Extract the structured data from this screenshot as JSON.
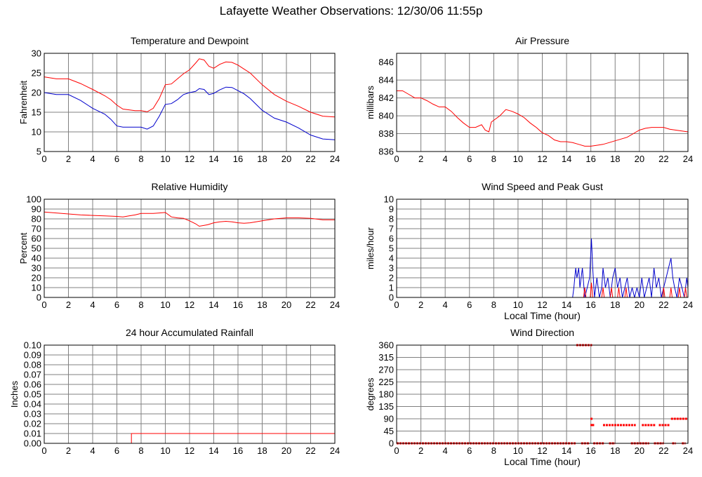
{
  "page": {
    "title": "Lafayette Weather Observations: 12/30/06 11:55p"
  },
  "colors": {
    "red_series": "#ff0000",
    "blue_series": "#0000cc",
    "grid": "#808080",
    "frame": "#000000"
  },
  "chart_data": [
    {
      "id": "temp",
      "type": "line",
      "title": "Temperature and Dewpoint",
      "xlabel": "",
      "ylabel": "Fahrenheit",
      "xlim": [
        0,
        24
      ],
      "ylim": [
        5,
        30
      ],
      "xticks": [
        0,
        2,
        4,
        6,
        8,
        10,
        12,
        14,
        16,
        18,
        20,
        22,
        24
      ],
      "yticks": [
        5,
        10,
        15,
        20,
        25,
        30
      ],
      "grid": true,
      "series": [
        {
          "color": "#ff0000",
          "x": [
            0,
            1,
            2,
            3,
            4,
            5,
            5.5,
            6,
            6.5,
            7,
            7.5,
            8,
            8.5,
            9,
            9.5,
            10,
            10.5,
            11,
            11.5,
            12,
            12.5,
            12.8,
            13.2,
            13.6,
            14,
            14.5,
            15,
            15.5,
            16,
            16.5,
            17,
            18,
            19,
            20,
            21,
            22,
            23,
            24
          ],
          "y": [
            24,
            23.5,
            23.5,
            22.3,
            20.8,
            19.2,
            18.2,
            16.8,
            15.8,
            15.6,
            15.4,
            15.4,
            15.1,
            16,
            18.5,
            22,
            22.2,
            23.5,
            24.8,
            25.8,
            27.5,
            28.6,
            28.3,
            26.7,
            26.2,
            27.2,
            27.8,
            27.7,
            27,
            26,
            25,
            22,
            19.5,
            17.8,
            16.5,
            15,
            14,
            13.8
          ]
        },
        {
          "color": "#0000cc",
          "x": [
            0,
            1,
            2,
            3,
            4,
            5,
            5.5,
            6,
            6.5,
            7,
            7.5,
            8,
            8.5,
            9,
            9.5,
            10,
            10.5,
            11,
            11.5,
            12,
            12.5,
            12.8,
            13.2,
            13.6,
            14,
            14.5,
            15,
            15.5,
            16,
            16.5,
            17,
            18,
            19,
            20,
            21,
            22,
            23,
            24
          ],
          "y": [
            20,
            19.5,
            19.5,
            18,
            16,
            14.5,
            13.2,
            11.5,
            11.2,
            11.2,
            11.2,
            11.2,
            10.7,
            11.5,
            14,
            17,
            17.2,
            18.2,
            19.5,
            20,
            20.3,
            21,
            20.8,
            19.5,
            19.8,
            20.7,
            21.4,
            21.3,
            20.5,
            19.7,
            18.5,
            15.5,
            13.5,
            12.5,
            11,
            9.2,
            8.2,
            8
          ]
        }
      ]
    },
    {
      "id": "pressure",
      "type": "line",
      "title": "Air Pressure",
      "xlabel": "",
      "ylabel": "millibars",
      "xlim": [
        0,
        24
      ],
      "ylim": [
        836,
        847
      ],
      "xticks": [
        0,
        2,
        4,
        6,
        8,
        10,
        12,
        14,
        16,
        18,
        20,
        22,
        24
      ],
      "yticks": [
        836,
        838,
        840,
        842,
        844,
        846
      ],
      "grid": true,
      "series": [
        {
          "color": "#ff0000",
          "x": [
            0,
            0.5,
            1,
            1.5,
            2,
            2.5,
            3,
            3.5,
            4,
            4.5,
            5,
            5.5,
            6,
            6.5,
            7,
            7.3,
            7.6,
            7.8,
            8,
            8.5,
            9,
            9.5,
            10,
            10.5,
            11,
            11.5,
            12,
            12.5,
            13,
            13.5,
            14,
            14.5,
            15,
            15.5,
            16,
            16.5,
            17,
            17.5,
            18,
            18.5,
            19,
            19.5,
            20,
            20.5,
            21,
            21.5,
            22,
            22.5,
            23,
            23.5,
            24
          ],
          "y": [
            842.8,
            842.8,
            842.4,
            842,
            842,
            841.7,
            841.3,
            841,
            841,
            840.5,
            839.8,
            839.2,
            838.7,
            838.7,
            839,
            838.4,
            838.2,
            839.3,
            839.5,
            840,
            840.7,
            840.5,
            840.2,
            839.8,
            839.2,
            838.7,
            838.1,
            837.8,
            837.3,
            837.1,
            837.1,
            837,
            836.8,
            836.6,
            836.6,
            836.7,
            836.8,
            837,
            837.2,
            837.4,
            837.6,
            838,
            838.4,
            838.6,
            838.7,
            838.7,
            838.7,
            838.5,
            838.4,
            838.3,
            838.2
          ]
        }
      ]
    },
    {
      "id": "humidity",
      "type": "line",
      "title": "Relative Humidity",
      "xlabel": "",
      "ylabel": "Percent",
      "xlim": [
        0,
        24
      ],
      "ylim": [
        0,
        100
      ],
      "xticks": [
        0,
        2,
        4,
        6,
        8,
        10,
        12,
        14,
        16,
        18,
        20,
        22,
        24
      ],
      "yticks": [
        0,
        10,
        20,
        30,
        40,
        50,
        60,
        70,
        80,
        90,
        100
      ],
      "grid": true,
      "series": [
        {
          "color": "#ff0000",
          "x": [
            0,
            1,
            2,
            3,
            4,
            5,
            6,
            6.5,
            7,
            7.5,
            8,
            8.5,
            9,
            9.5,
            10,
            10.5,
            11,
            11.5,
            12,
            12.5,
            12.8,
            13.5,
            14,
            14.5,
            15,
            15.5,
            16,
            16.5,
            17,
            18,
            19,
            20,
            21,
            22,
            23,
            24
          ],
          "y": [
            87,
            86,
            85,
            84,
            83.5,
            83,
            82.5,
            82,
            83,
            84,
            85.5,
            85.5,
            85.5,
            86,
            86.5,
            82,
            81,
            80.5,
            78,
            75,
            72.5,
            74,
            76,
            77,
            77.5,
            77,
            76,
            75.5,
            76,
            78,
            80,
            81,
            81,
            80.5,
            79,
            79
          ]
        }
      ]
    },
    {
      "id": "wind",
      "type": "line",
      "title": "Wind Speed and Peak Gust",
      "xlabel": "Local Time (hour)",
      "ylabel": "miles/hour",
      "xlim": [
        0,
        24
      ],
      "ylim": [
        0,
        10
      ],
      "xticks": [
        0,
        2,
        4,
        6,
        8,
        10,
        12,
        14,
        16,
        18,
        20,
        22,
        24
      ],
      "yticks": [
        0,
        1,
        2,
        3,
        4,
        5,
        6,
        7,
        8,
        9,
        10
      ],
      "grid": true,
      "series": [
        {
          "color": "#0000cc",
          "x": [
            0,
            14.5,
            14.6,
            14.75,
            14.85,
            15,
            15.1,
            15.3,
            15.5,
            15.7,
            15.9,
            16.05,
            16.15,
            16.3,
            16.5,
            16.7,
            16.9,
            17,
            17.2,
            17.4,
            17.6,
            17.8,
            18,
            18.2,
            18.4,
            18.6,
            18.8,
            19,
            19.2,
            19.4,
            19.6,
            19.8,
            20,
            20.2,
            20.4,
            20.6,
            20.8,
            21,
            21.2,
            21.4,
            21.6,
            21.8,
            22,
            22.2,
            22.4,
            22.6,
            22.75,
            22.9,
            23.1,
            23.3,
            23.5,
            23.7,
            23.9,
            24
          ],
          "y": [
            0,
            0,
            1,
            3,
            2,
            3,
            1,
            3,
            0,
            1,
            2,
            6,
            3,
            0,
            2,
            0,
            1,
            3,
            1,
            2,
            0,
            2,
            3,
            1,
            2,
            0,
            1,
            2,
            0,
            1,
            0,
            1,
            0,
            2,
            0,
            1,
            2,
            0,
            3,
            1,
            2,
            0,
            1,
            2,
            3,
            4,
            2,
            1,
            0,
            2,
            1,
            0,
            2,
            1
          ]
        },
        {
          "color": "#ff0000",
          "x": [
            0,
            15.4,
            15.5,
            15.6,
            15.95,
            16.05,
            16.15,
            16.9,
            17.0,
            17.1,
            17.6,
            17.7,
            17.8,
            18.2,
            18.3,
            18.4,
            18.8,
            18.9,
            19.0,
            21.9,
            22.0,
            22.1,
            22.5,
            22.6,
            22.7,
            23.2,
            23.3,
            23.4,
            23.7,
            23.8,
            23.9,
            24
          ],
          "y": [
            0,
            0,
            1,
            0,
            0,
            1.5,
            0,
            0,
            1,
            0,
            0,
            1,
            0,
            0,
            1,
            0,
            0,
            1,
            0,
            0,
            1,
            0,
            0,
            1,
            0,
            0,
            1,
            0,
            0,
            1,
            0,
            0
          ]
        }
      ]
    },
    {
      "id": "rain",
      "type": "line",
      "title": "24 hour Accumulated Rainfall",
      "xlabel": "",
      "ylabel": "Inches",
      "xlim": [
        0,
        24
      ],
      "ylim": [
        0,
        0.1
      ],
      "xticks": [
        0,
        2,
        4,
        6,
        8,
        10,
        12,
        14,
        16,
        18,
        20,
        22,
        24
      ],
      "yticks": [
        "0.00",
        "0.01",
        "0.02",
        "0.03",
        "0.04",
        "0.05",
        "0.06",
        "0.07",
        "0.08",
        "0.09",
        "0.10"
      ],
      "grid": true,
      "series": [
        {
          "color": "#ff0000",
          "x": [
            0,
            7.2,
            7.2,
            24
          ],
          "y": [
            0,
            0,
            0.01,
            0.01
          ]
        }
      ]
    },
    {
      "id": "direction",
      "type": "scatter",
      "title": "Wind Direction",
      "xlabel": "Local Time (hour)",
      "ylabel": "degrees",
      "xlim": [
        0,
        24
      ],
      "ylim": [
        0,
        360
      ],
      "xticks": [
        0,
        2,
        4,
        6,
        8,
        10,
        12,
        14,
        16,
        18,
        20,
        22,
        24
      ],
      "yticks": [
        0,
        45,
        90,
        135,
        180,
        225,
        270,
        315,
        360
      ],
      "grid": true,
      "segments": [
        {
          "y": 0,
          "x0": 0,
          "x1": 14.8
        },
        {
          "y": 360,
          "x0": 14.8,
          "x1": 16.1
        },
        {
          "y": 0,
          "x0": 15.2,
          "x1": 15.9
        },
        {
          "y": 0,
          "x0": 16.2,
          "x1": 17.1
        },
        {
          "y": 0,
          "x0": 17.5,
          "x1": 18.0
        },
        {
          "y": 0,
          "x0": 19.3,
          "x1": 20.8
        },
        {
          "y": 0,
          "x0": 21.2,
          "x1": 22.0
        },
        {
          "y": 0,
          "x0": 22.7,
          "x1": 23.0
        },
        {
          "y": 0,
          "x0": 23.5,
          "x1": 23.8
        },
        {
          "y": 67,
          "x0": 16.1,
          "x1": 16.3
        },
        {
          "y": 67,
          "x0": 17.0,
          "x1": 19.7
        },
        {
          "y": 67,
          "x0": 20.2,
          "x1": 21.3
        },
        {
          "y": 67,
          "x0": 21.6,
          "x1": 22.5
        },
        {
          "y": 90,
          "x0": 22.6,
          "x1": 24
        }
      ],
      "points": [
        {
          "x": 16.05,
          "y": 90
        },
        {
          "x": 16.05,
          "y": 67
        }
      ]
    }
  ]
}
